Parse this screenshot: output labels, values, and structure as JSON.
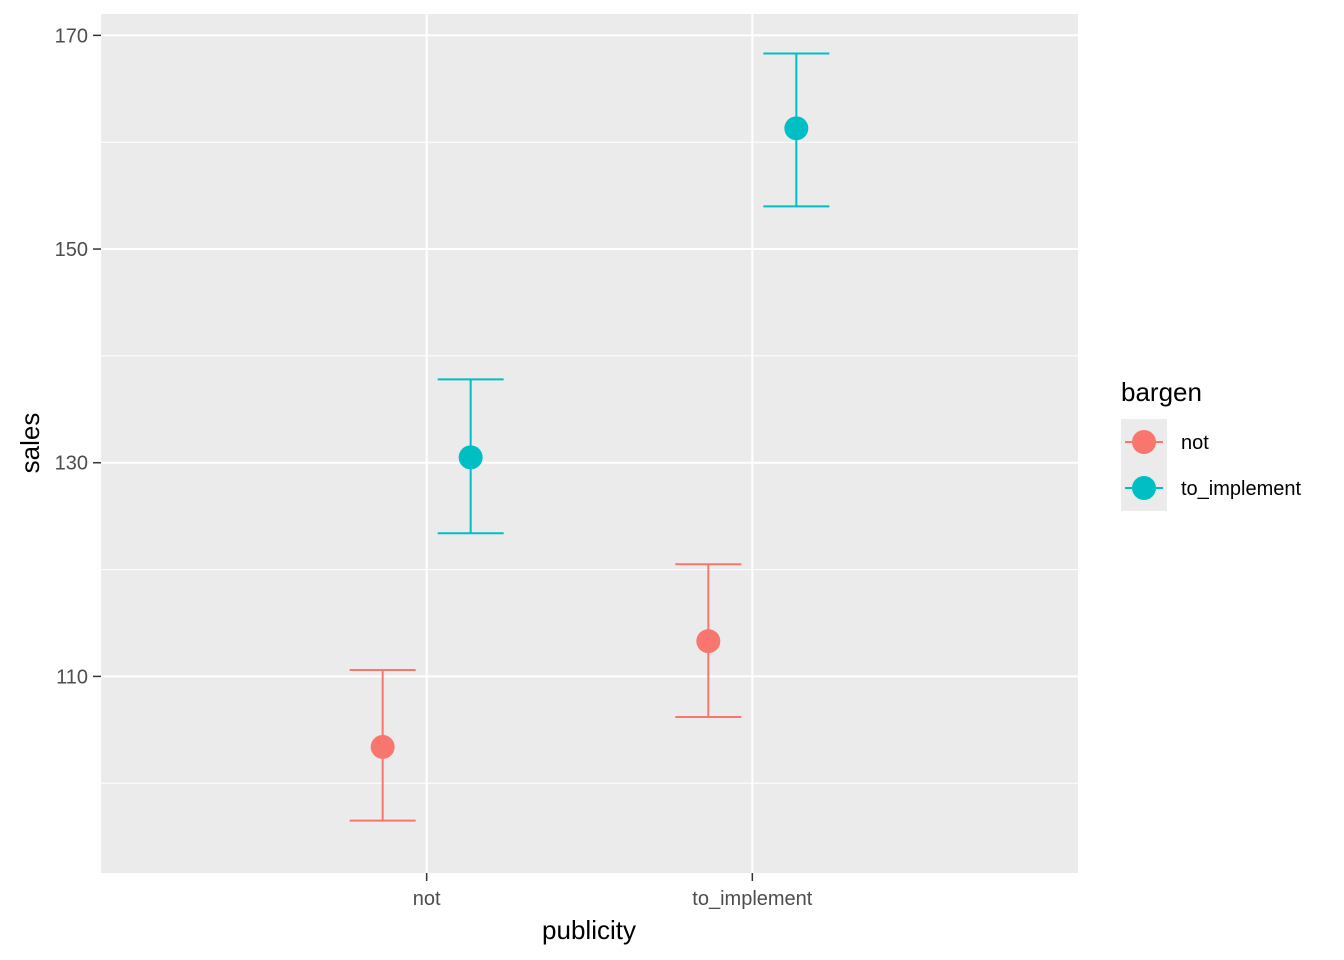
{
  "chart_data": {
    "type": "scatter",
    "subtype": "point-errorbar",
    "xlabel": "publicity",
    "ylabel": "sales",
    "categories": [
      "not",
      "to_implement"
    ],
    "ylim": [
      91.6,
      172
    ],
    "yticks": [
      110,
      130,
      150,
      170
    ],
    "grid": true,
    "legend": {
      "title": "bargen",
      "position": "right"
    },
    "series": [
      {
        "name": "not",
        "color": "#F8766D",
        "points": [
          {
            "x": "not",
            "y": 103.4,
            "ymin": 96.5,
            "ymax": 110.6
          },
          {
            "x": "to_implement",
            "y": 113.3,
            "ymin": 106.2,
            "ymax": 120.5
          }
        ]
      },
      {
        "name": "to_implement",
        "color": "#00BFC4",
        "points": [
          {
            "x": "not",
            "y": 130.5,
            "ymin": 123.4,
            "ymax": 137.8
          },
          {
            "x": "to_implement",
            "y": 161.3,
            "ymin": 154.0,
            "ymax": 168.3
          }
        ]
      }
    ]
  }
}
